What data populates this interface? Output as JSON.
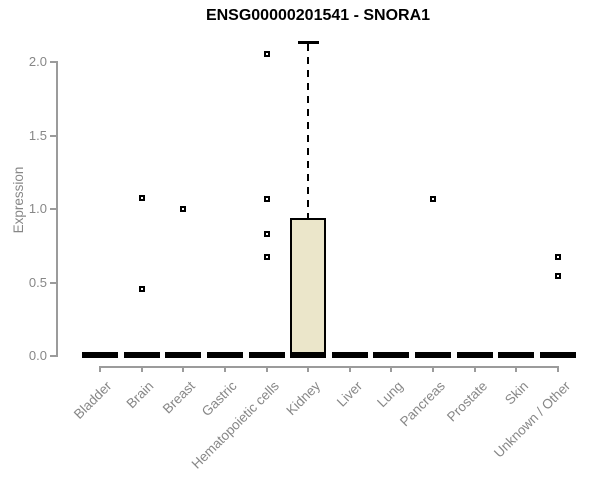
{
  "chart_data": {
    "type": "boxplot",
    "title": "ENSG00000201541 - SNORA1",
    "xlabel": "",
    "ylabel": "Expression",
    "ylim": [
      0,
      2.15
    ],
    "ytick_labels": [
      "0.0",
      "0.5",
      "1.0",
      "1.5",
      "2.0"
    ],
    "ytick_values": [
      0,
      0.5,
      1.0,
      1.5,
      2.0
    ],
    "grid": false,
    "legend": "none",
    "categories": [
      "Bladder",
      "Brain",
      "Breast",
      "Gastric",
      "Hematopoietic cells",
      "Kidney",
      "Liver",
      "Lung",
      "Pancreas",
      "Prostate",
      "Skin",
      "Unknown / Other"
    ],
    "boxes": [
      {
        "category": "Bladder",
        "q1": 0,
        "median": 0,
        "q3": 0,
        "whisker_low": 0,
        "whisker_high": 0,
        "outliers": []
      },
      {
        "category": "Brain",
        "q1": 0,
        "median": 0,
        "q3": 0,
        "whisker_low": 0,
        "whisker_high": 0,
        "outliers": [
          1.07,
          0.45
        ]
      },
      {
        "category": "Breast",
        "q1": 0,
        "median": 0,
        "q3": 0,
        "whisker_low": 0,
        "whisker_high": 0,
        "outliers": [
          0.99
        ]
      },
      {
        "category": "Gastric",
        "q1": 0,
        "median": 0,
        "q3": 0,
        "whisker_low": 0,
        "whisker_high": 0,
        "outliers": []
      },
      {
        "category": "Hematopoietic cells",
        "q1": 0,
        "median": 0,
        "q3": 0,
        "whisker_low": 0,
        "whisker_high": 0,
        "outliers": [
          2.05,
          1.06,
          0.82,
          0.67
        ]
      },
      {
        "category": "Kidney",
        "q1": 0,
        "median": 0,
        "q3": 0.93,
        "whisker_low": 0,
        "whisker_high": 2.13,
        "outliers": []
      },
      {
        "category": "Liver",
        "q1": 0,
        "median": 0,
        "q3": 0,
        "whisker_low": 0,
        "whisker_high": 0,
        "outliers": []
      },
      {
        "category": "Lung",
        "q1": 0,
        "median": 0,
        "q3": 0,
        "whisker_low": 0,
        "whisker_high": 0,
        "outliers": []
      },
      {
        "category": "Pancreas",
        "q1": 0,
        "median": 0,
        "q3": 0,
        "whisker_low": 0,
        "whisker_high": 0,
        "outliers": [
          1.06
        ]
      },
      {
        "category": "Prostate",
        "q1": 0,
        "median": 0,
        "q3": 0,
        "whisker_low": 0,
        "whisker_high": 0,
        "outliers": []
      },
      {
        "category": "Skin",
        "q1": 0,
        "median": 0,
        "q3": 0,
        "whisker_low": 0,
        "whisker_high": 0,
        "outliers": []
      },
      {
        "category": "Unknown / Other",
        "q1": 0,
        "median": 0,
        "q3": 0,
        "whisker_low": 0,
        "whisker_high": 0,
        "outliers": [
          0.67,
          0.54
        ]
      }
    ],
    "style": {
      "box_fill": "#ebe6ca",
      "box_border": "#000000",
      "median_color": "#000000",
      "axis_color": "#9b9b9b",
      "label_color": "#878787",
      "title_color": "#000000"
    }
  }
}
